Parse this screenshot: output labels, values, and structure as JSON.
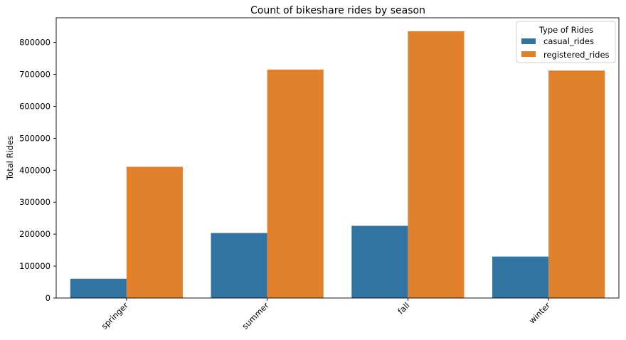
{
  "chart_data": {
    "type": "bar",
    "title": "Count of bikeshare rides by season",
    "xlabel": "",
    "ylabel": "Total Rides",
    "categories": [
      "springer",
      "summer",
      "fall",
      "winter"
    ],
    "series": [
      {
        "name": "casual_rides",
        "values": [
          60600,
          203500,
          226000,
          129800
        ],
        "color": "#3274a1"
      },
      {
        "name": "registered_rides",
        "values": [
          410700,
          715100,
          835000,
          711800
        ],
        "color": "#e1812c"
      }
    ],
    "ylim": [
      0,
      877000
    ],
    "yticks": [
      0,
      100000,
      200000,
      300000,
      400000,
      500000,
      600000,
      700000,
      800000
    ],
    "legend": {
      "title": "Type of Rides",
      "position": "top-right"
    },
    "grid": false
  }
}
